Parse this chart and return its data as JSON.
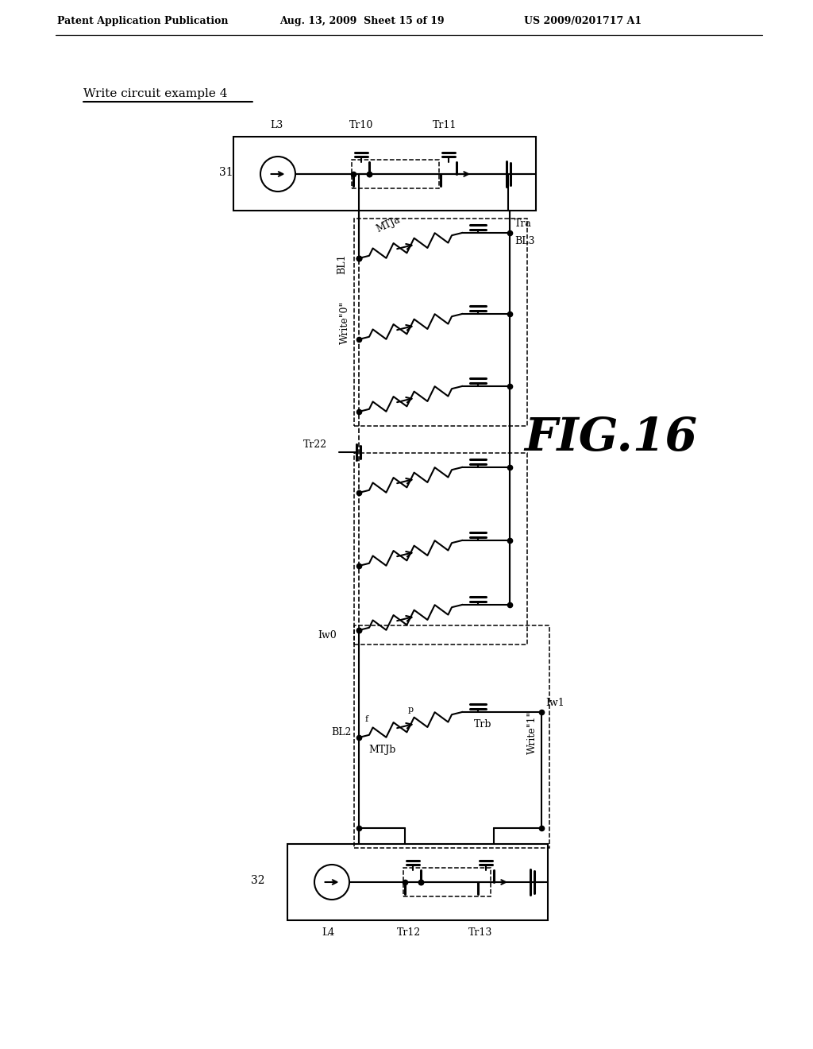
{
  "header_left": "Patent Application Publication",
  "header_center": "Aug. 13, 2009  Sheet 15 of 19",
  "header_right": "US 2009/0201717 A1",
  "subtitle": "Write circuit example 4",
  "fig_label": "FIG.16",
  "bg_color": "#ffffff",
  "lc": "#000000",
  "block31_label": "31",
  "block32_label": "32",
  "L3": "L3",
  "L4": "L4",
  "Tr10": "Tr10",
  "Tr11": "Tr11",
  "Tr12": "Tr12",
  "Tr13": "Tr13",
  "Tr22": "Tr22",
  "BL1": "BL1",
  "BL2": "BL2",
  "BL3": "BL3",
  "MTJa": "MTJa",
  "MTJb": "MTJb",
  "Tra": "Tra",
  "Trb": "Trb",
  "write0": "Write\"0\"",
  "write1": "Write\"1\"",
  "Iw0": "Iw0",
  "Iw1": "Iw1",
  "f_label": "f",
  "p_label": "p"
}
